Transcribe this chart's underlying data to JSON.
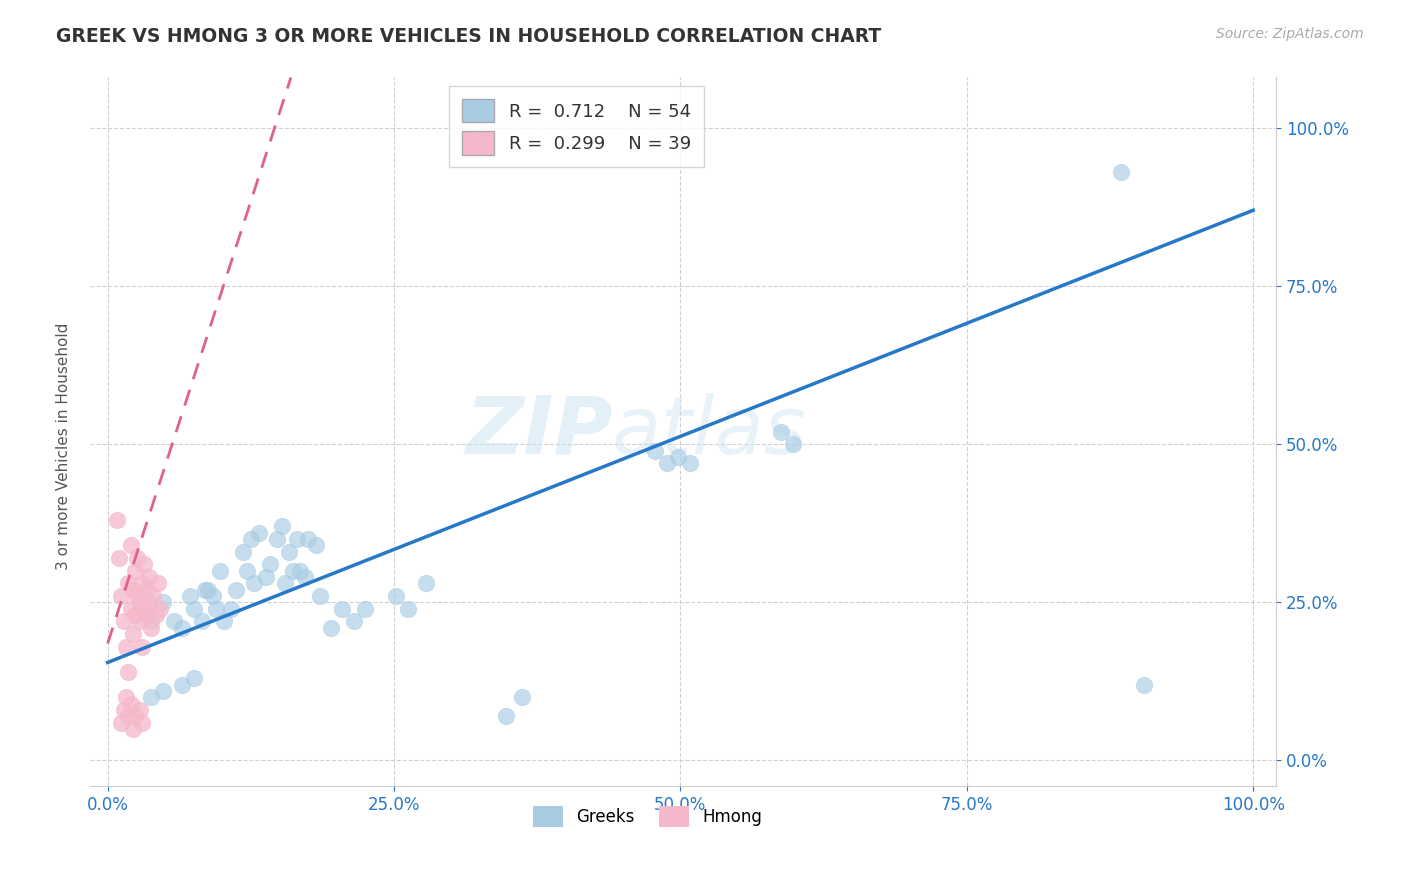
{
  "title": "GREEK VS HMONG 3 OR MORE VEHICLES IN HOUSEHOLD CORRELATION CHART",
  "source": "Source: ZipAtlas.com",
  "ylabel": "3 or more Vehicles in Household",
  "xlim": [
    -0.015,
    1.02
  ],
  "ylim": [
    -0.04,
    1.08
  ],
  "greek_R": 0.712,
  "greek_N": 54,
  "hmong_R": 0.299,
  "hmong_N": 39,
  "watermark_zip": "ZIP",
  "watermark_atlas": "atlas",
  "blue_color": "#a8cce4",
  "blue_line_color": "#2878c8",
  "pink_color": "#f5b8ca",
  "pink_line_color": "#e06090",
  "blue_scatter": [
    [
      0.038,
      0.22
    ],
    [
      0.048,
      0.25
    ],
    [
      0.058,
      0.22
    ],
    [
      0.065,
      0.21
    ],
    [
      0.072,
      0.26
    ],
    [
      0.075,
      0.24
    ],
    [
      0.082,
      0.22
    ],
    [
      0.085,
      0.27
    ],
    [
      0.088,
      0.27
    ],
    [
      0.092,
      0.26
    ],
    [
      0.095,
      0.24
    ],
    [
      0.098,
      0.3
    ],
    [
      0.102,
      0.22
    ],
    [
      0.108,
      0.24
    ],
    [
      0.112,
      0.27
    ],
    [
      0.118,
      0.33
    ],
    [
      0.122,
      0.3
    ],
    [
      0.125,
      0.35
    ],
    [
      0.128,
      0.28
    ],
    [
      0.132,
      0.36
    ],
    [
      0.138,
      0.29
    ],
    [
      0.142,
      0.31
    ],
    [
      0.148,
      0.35
    ],
    [
      0.152,
      0.37
    ],
    [
      0.155,
      0.28
    ],
    [
      0.158,
      0.33
    ],
    [
      0.162,
      0.3
    ],
    [
      0.165,
      0.35
    ],
    [
      0.168,
      0.3
    ],
    [
      0.172,
      0.29
    ],
    [
      0.175,
      0.35
    ],
    [
      0.182,
      0.34
    ],
    [
      0.185,
      0.26
    ],
    [
      0.195,
      0.21
    ],
    [
      0.205,
      0.24
    ],
    [
      0.215,
      0.22
    ],
    [
      0.225,
      0.24
    ],
    [
      0.252,
      0.26
    ],
    [
      0.262,
      0.24
    ],
    [
      0.278,
      0.28
    ],
    [
      0.038,
      0.1
    ],
    [
      0.048,
      0.11
    ],
    [
      0.065,
      0.12
    ],
    [
      0.075,
      0.13
    ],
    [
      0.362,
      0.1
    ],
    [
      0.488,
      0.47
    ],
    [
      0.498,
      0.48
    ],
    [
      0.508,
      0.47
    ],
    [
      0.478,
      0.49
    ],
    [
      0.588,
      0.52
    ],
    [
      0.598,
      0.5
    ],
    [
      0.885,
      0.93
    ],
    [
      0.905,
      0.12
    ],
    [
      0.348,
      0.07
    ]
  ],
  "pink_scatter": [
    [
      0.008,
      0.38
    ],
    [
      0.01,
      0.32
    ],
    [
      0.012,
      0.26
    ],
    [
      0.014,
      0.22
    ],
    [
      0.016,
      0.18
    ],
    [
      0.018,
      0.14
    ],
    [
      0.018,
      0.28
    ],
    [
      0.02,
      0.24
    ],
    [
      0.02,
      0.34
    ],
    [
      0.022,
      0.2
    ],
    [
      0.022,
      0.27
    ],
    [
      0.024,
      0.23
    ],
    [
      0.024,
      0.3
    ],
    [
      0.026,
      0.26
    ],
    [
      0.026,
      0.32
    ],
    [
      0.028,
      0.25
    ],
    [
      0.028,
      0.22
    ],
    [
      0.03,
      0.28
    ],
    [
      0.03,
      0.18
    ],
    [
      0.032,
      0.24
    ],
    [
      0.032,
      0.31
    ],
    [
      0.034,
      0.23
    ],
    [
      0.034,
      0.27
    ],
    [
      0.036,
      0.25
    ],
    [
      0.036,
      0.29
    ],
    [
      0.038,
      0.21
    ],
    [
      0.04,
      0.26
    ],
    [
      0.042,
      0.23
    ],
    [
      0.044,
      0.28
    ],
    [
      0.046,
      0.24
    ],
    [
      0.012,
      0.06
    ],
    [
      0.014,
      0.08
    ],
    [
      0.016,
      0.1
    ],
    [
      0.018,
      0.07
    ],
    [
      0.02,
      0.09
    ],
    [
      0.022,
      0.05
    ],
    [
      0.024,
      0.07
    ],
    [
      0.028,
      0.08
    ],
    [
      0.03,
      0.06
    ]
  ],
  "blue_line_x0": 0.0,
  "blue_line_y0": 0.155,
  "blue_line_x1": 1.0,
  "blue_line_y1": 0.87,
  "pink_line_x0": 0.0,
  "pink_line_y0": 0.185,
  "pink_line_x1": 0.16,
  "pink_line_y1": 1.08
}
